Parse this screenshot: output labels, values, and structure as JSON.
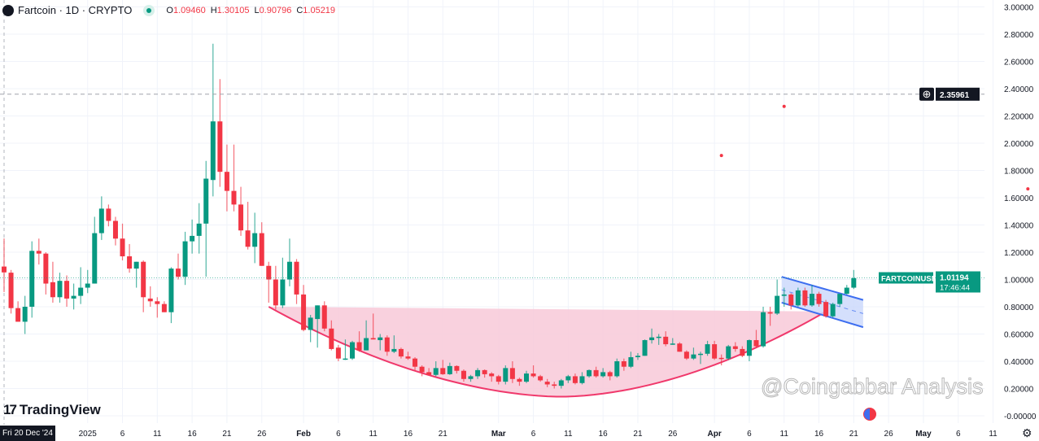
{
  "legend": {
    "symbol": "Fartcoin · 1D · CRYPTO",
    "o_label": "O",
    "o": "1.09460",
    "h_label": "H",
    "h": "1.30105",
    "l_label": "L",
    "l": "0.90796",
    "c_label": "C",
    "c": "1.05219",
    "market_status_color": "#089981"
  },
  "branding": {
    "logo_text": "TradingView",
    "logo_mark": "17"
  },
  "cursor_date": "Fri 20 Dec '24",
  "watermark": "@Coingabbar Analysis",
  "colors": {
    "up": "#089981",
    "down": "#f23645",
    "cup_fill": "#f8c9d8",
    "cup_line": "#f0386b",
    "channel_line": "#3d6ef0",
    "channel_fill": "#c9d7fb"
  },
  "chart_data": {
    "type": "candlestick",
    "interval": "1D",
    "first_candle_date": "2024-12-20",
    "ylim": [
      0,
      3.0
    ],
    "y_ticks": [
      "3.00000",
      "2.80000",
      "2.60000",
      "2.40000",
      "2.20000",
      "2.00000",
      "1.80000",
      "1.60000",
      "1.40000",
      "1.20000",
      "1.00000",
      "0.80000",
      "0.60000",
      "0.40000",
      "0.20000",
      "-0.00000"
    ],
    "x_ticks": [
      {
        "label": "2025",
        "date": "2025-01-01"
      },
      {
        "label": "6",
        "date": "2025-01-06"
      },
      {
        "label": "11",
        "date": "2025-01-11"
      },
      {
        "label": "16",
        "date": "2025-01-16"
      },
      {
        "label": "21",
        "date": "2025-01-21"
      },
      {
        "label": "26",
        "date": "2025-01-26"
      },
      {
        "label": "Feb",
        "date": "2025-02-01"
      },
      {
        "label": "6",
        "date": "2025-02-06"
      },
      {
        "label": "11",
        "date": "2025-02-11"
      },
      {
        "label": "16",
        "date": "2025-02-16"
      },
      {
        "label": "21",
        "date": "2025-02-21"
      },
      {
        "label": "Mar",
        "date": "2025-03-01"
      },
      {
        "label": "6",
        "date": "2025-03-06"
      },
      {
        "label": "11",
        "date": "2025-03-11"
      },
      {
        "label": "16",
        "date": "2025-03-16"
      },
      {
        "label": "21",
        "date": "2025-03-21"
      },
      {
        "label": "26",
        "date": "2025-03-26"
      },
      {
        "label": "Apr",
        "date": "2025-04-01"
      },
      {
        "label": "6",
        "date": "2025-04-06"
      },
      {
        "label": "11",
        "date": "2025-04-11"
      },
      {
        "label": "16",
        "date": "2025-04-16"
      },
      {
        "label": "21",
        "date": "2025-04-21"
      },
      {
        "label": "26",
        "date": "2025-04-26"
      },
      {
        "label": "May",
        "date": "2025-05-01"
      },
      {
        "label": "6",
        "date": "2025-05-06"
      },
      {
        "label": "11",
        "date": "2025-05-11"
      }
    ],
    "candles_ohlc": [
      [
        1.095,
        1.301,
        0.908,
        1.052
      ],
      [
        1.05,
        1.07,
        0.75,
        0.79
      ],
      [
        0.79,
        0.84,
        0.69,
        0.69
      ],
      [
        0.69,
        0.88,
        0.6,
        0.8
      ],
      [
        0.8,
        1.28,
        0.72,
        1.21
      ],
      [
        1.21,
        1.3,
        1.11,
        1.19
      ],
      [
        1.19,
        1.2,
        0.89,
        0.97
      ],
      [
        0.98,
        1.13,
        0.83,
        0.87
      ],
      [
        0.87,
        1.05,
        0.83,
        0.99
      ],
      [
        0.99,
        1.03,
        0.8,
        0.86
      ],
      [
        0.86,
        0.97,
        0.78,
        0.88
      ],
      [
        0.88,
        1.09,
        0.82,
        0.94
      ],
      [
        0.94,
        1.07,
        0.9,
        0.97
      ],
      [
        0.97,
        1.46,
        0.97,
        1.34
      ],
      [
        1.34,
        1.61,
        1.29,
        1.52
      ],
      [
        1.52,
        1.55,
        1.39,
        1.43
      ],
      [
        1.43,
        1.46,
        1.25,
        1.3
      ],
      [
        1.3,
        1.41,
        1.14,
        1.17
      ],
      [
        1.17,
        1.26,
        1.05,
        1.08
      ],
      [
        1.08,
        1.13,
        0.94,
        1.13
      ],
      [
        1.13,
        1.14,
        0.76,
        0.87
      ],
      [
        0.86,
        0.95,
        0.8,
        0.84
      ],
      [
        0.84,
        0.87,
        0.72,
        0.82
      ],
      [
        0.82,
        0.84,
        0.76,
        0.76
      ],
      [
        0.76,
        1.09,
        0.68,
        1.08
      ],
      [
        1.08,
        1.19,
        1.0,
        1.02
      ],
      [
        1.02,
        1.35,
        0.96,
        1.28
      ],
      [
        1.28,
        1.44,
        1.19,
        1.32
      ],
      [
        1.32,
        1.56,
        1.19,
        1.41
      ],
      [
        1.41,
        1.87,
        1.02,
        1.74
      ],
      [
        1.73,
        2.73,
        1.61,
        2.16
      ],
      [
        2.16,
        2.47,
        1.68,
        1.79
      ],
      [
        1.79,
        1.99,
        1.5,
        1.65
      ],
      [
        1.65,
        1.99,
        1.5,
        1.55
      ],
      [
        1.55,
        1.68,
        1.32,
        1.36
      ],
      [
        1.36,
        1.57,
        1.22,
        1.24
      ],
      [
        1.24,
        1.49,
        1.12,
        1.34
      ],
      [
        1.34,
        1.42,
        1.1,
        1.1
      ],
      [
        1.1,
        1.13,
        0.83,
        1.0
      ],
      [
        1.0,
        1.1,
        0.78,
        0.81
      ],
      [
        0.81,
        1.16,
        0.79,
        1.0
      ],
      [
        1.0,
        1.3,
        0.95,
        1.13
      ],
      [
        1.13,
        1.15,
        0.82,
        0.89
      ],
      [
        0.89,
        0.96,
        0.62,
        0.63
      ],
      [
        0.63,
        0.74,
        0.54,
        0.72
      ],
      [
        0.71,
        0.81,
        0.5,
        0.81
      ],
      [
        0.81,
        0.84,
        0.62,
        0.64
      ],
      [
        0.64,
        0.7,
        0.48,
        0.49
      ],
      [
        0.5,
        0.52,
        0.4,
        0.42
      ],
      [
        0.42,
        0.56,
        0.41,
        0.42
      ],
      [
        0.42,
        0.55,
        0.41,
        0.54
      ],
      [
        0.54,
        0.62,
        0.47,
        0.48
      ],
      [
        0.48,
        0.7,
        0.48,
        0.57
      ],
      [
        0.57,
        0.75,
        0.56,
        0.56
      ],
      [
        0.555,
        0.6,
        0.48,
        0.575
      ],
      [
        0.575,
        0.59,
        0.44,
        0.47
      ],
      [
        0.47,
        0.59,
        0.46,
        0.49
      ],
      [
        0.49,
        0.5,
        0.42,
        0.435
      ],
      [
        0.435,
        0.47,
        0.41,
        0.42
      ],
      [
        0.42,
        0.43,
        0.33,
        0.36
      ],
      [
        0.36,
        0.37,
        0.29,
        0.32
      ],
      [
        0.32,
        0.35,
        0.3,
        0.3
      ],
      [
        0.3,
        0.4,
        0.29,
        0.35
      ],
      [
        0.35,
        0.41,
        0.3,
        0.305
      ],
      [
        0.305,
        0.39,
        0.3,
        0.365
      ],
      [
        0.365,
        0.37,
        0.31,
        0.33
      ],
      [
        0.33,
        0.34,
        0.25,
        0.27
      ],
      [
        0.27,
        0.3,
        0.25,
        0.29
      ],
      [
        0.29,
        0.35,
        0.27,
        0.335
      ],
      [
        0.335,
        0.34,
        0.28,
        0.305
      ],
      [
        0.31,
        0.32,
        0.25,
        0.29
      ],
      [
        0.29,
        0.3,
        0.23,
        0.25
      ],
      [
        0.25,
        0.37,
        0.23,
        0.35
      ],
      [
        0.35,
        0.4,
        0.24,
        0.27
      ],
      [
        0.27,
        0.28,
        0.22,
        0.25
      ],
      [
        0.25,
        0.33,
        0.24,
        0.31
      ],
      [
        0.31,
        0.37,
        0.28,
        0.29
      ],
      [
        0.29,
        0.3,
        0.25,
        0.26
      ],
      [
        0.25,
        0.27,
        0.21,
        0.23
      ],
      [
        0.23,
        0.25,
        0.2,
        0.22
      ],
      [
        0.22,
        0.27,
        0.2,
        0.26
      ],
      [
        0.26,
        0.3,
        0.24,
        0.29
      ],
      [
        0.29,
        0.31,
        0.23,
        0.24
      ],
      [
        0.24,
        0.32,
        0.23,
        0.29
      ],
      [
        0.29,
        0.34,
        0.28,
        0.335
      ],
      [
        0.335,
        0.36,
        0.28,
        0.29
      ],
      [
        0.29,
        0.35,
        0.28,
        0.32
      ],
      [
        0.32,
        0.33,
        0.26,
        0.29
      ],
      [
        0.29,
        0.42,
        0.28,
        0.4
      ],
      [
        0.4,
        0.42,
        0.33,
        0.36
      ],
      [
        0.36,
        0.47,
        0.35,
        0.43
      ],
      [
        0.43,
        0.46,
        0.41,
        0.44
      ],
      [
        0.44,
        0.56,
        0.44,
        0.555
      ],
      [
        0.555,
        0.64,
        0.53,
        0.575
      ],
      [
        0.575,
        0.6,
        0.52,
        0.58
      ],
      [
        0.58,
        0.62,
        0.51,
        0.525
      ],
      [
        0.525,
        0.57,
        0.52,
        0.53
      ],
      [
        0.53,
        0.54,
        0.47,
        0.47
      ],
      [
        0.47,
        0.48,
        0.41,
        0.42
      ],
      [
        0.42,
        0.5,
        0.41,
        0.45
      ],
      [
        0.45,
        0.47,
        0.38,
        0.455
      ],
      [
        0.455,
        0.55,
        0.44,
        0.525
      ],
      [
        0.525,
        0.55,
        0.41,
        0.42
      ],
      [
        0.425,
        0.45,
        0.37,
        0.42
      ],
      [
        0.42,
        0.52,
        0.41,
        0.51
      ],
      [
        0.51,
        0.54,
        0.47,
        0.49
      ],
      [
        0.49,
        0.51,
        0.43,
        0.44
      ],
      [
        0.44,
        0.56,
        0.4,
        0.555
      ],
      [
        0.555,
        0.63,
        0.5,
        0.51
      ],
      [
        0.51,
        0.8,
        0.5,
        0.76
      ],
      [
        0.76,
        0.8,
        0.66,
        0.75
      ],
      [
        0.75,
        1.0,
        0.74,
        0.88
      ],
      [
        0.88,
        0.94,
        0.8,
        0.89
      ],
      [
        0.89,
        0.9,
        0.78,
        0.81
      ],
      [
        0.81,
        0.94,
        0.8,
        0.92
      ],
      [
        0.92,
        0.94,
        0.8,
        0.81
      ],
      [
        0.81,
        0.96,
        0.8,
        0.895
      ],
      [
        0.895,
        0.91,
        0.8,
        0.82
      ],
      [
        0.835,
        0.85,
        0.72,
        0.73
      ],
      [
        0.73,
        0.83,
        0.72,
        0.82
      ],
      [
        0.82,
        0.88,
        0.8,
        0.895
      ],
      [
        0.895,
        0.96,
        0.89,
        0.94
      ],
      [
        0.94,
        1.07,
        0.93,
        1.01
      ]
    ],
    "current_price": {
      "symbol_label": "FARTCOINUSD",
      "price": "1.01194",
      "countdown": "17:46:44",
      "value": 1.01194
    },
    "horizontal_line": {
      "value": 2.35961,
      "label": "2.35961"
    },
    "markers": [
      {
        "date": "2025-04-02",
        "value": 1.91
      },
      {
        "date": "2025-04-11",
        "value": 2.27
      },
      {
        "date": "2025-05-16",
        "value": 1.665
      }
    ],
    "cup_pattern": {
      "start": [
        "2025-01-27",
        0.8
      ],
      "bottom": [
        "2025-03-10",
        0.14
      ],
      "end": [
        "2025-04-17",
        0.765
      ],
      "rim_end": [
        "2025-04-17",
        0.765
      ]
    },
    "channel": {
      "upper": [
        [
          "2025-04-11",
          1.02
        ],
        [
          "2025-04-22",
          0.85
        ]
      ],
      "lower": [
        [
          "2025-04-11",
          0.83
        ],
        [
          "2025-04-22",
          0.65
        ]
      ]
    }
  }
}
